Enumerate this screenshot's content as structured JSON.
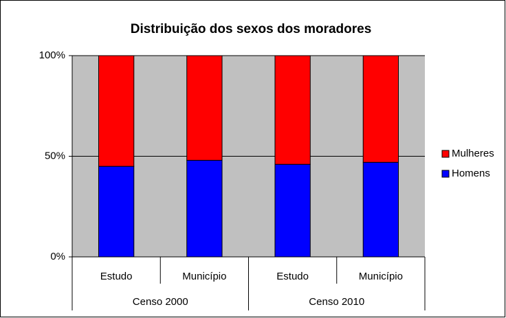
{
  "chart_data": {
    "type": "stacked_bar_percent",
    "title": "Distribuição dos sexos dos moradores",
    "categories": [
      "Estudo",
      "Município",
      "Estudo",
      "Município"
    ],
    "groups": [
      "Censo 2000",
      "Censo 2010"
    ],
    "series": [
      {
        "name": "Homens",
        "color": "#0000ff",
        "values": [
          45,
          48,
          46,
          47
        ]
      },
      {
        "name": "Mulheres",
        "color": "#ff0000",
        "values": [
          55,
          52,
          54,
          53
        ]
      }
    ],
    "ylim": [
      0,
      100
    ],
    "yticks": [
      {
        "value": 0,
        "label": "0%"
      },
      {
        "value": 50,
        "label": "50%"
      },
      {
        "value": 100,
        "label": "100%"
      }
    ],
    "grid": true,
    "legend": "right"
  }
}
